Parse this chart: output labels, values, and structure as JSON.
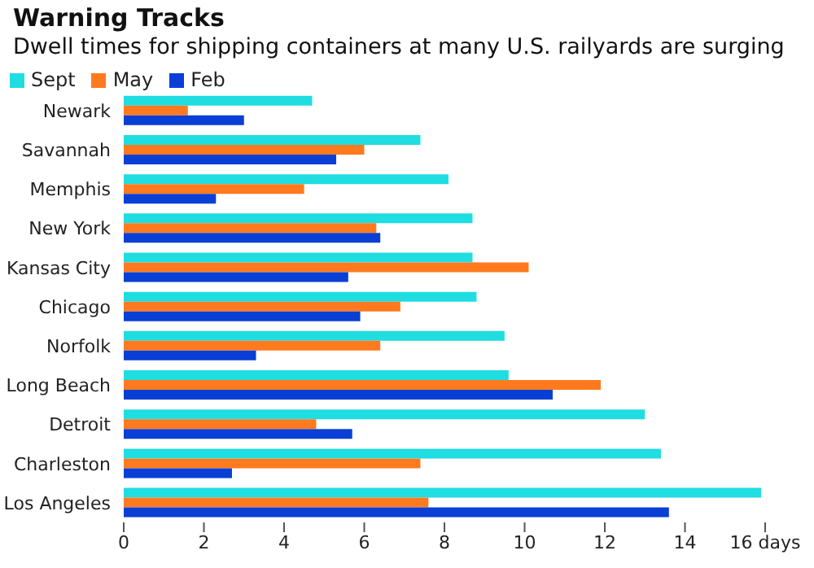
{
  "chart_data": {
    "type": "bar",
    "orientation": "horizontal",
    "title": "Warning Tracks",
    "subtitle": "Dwell times for shipping containers at many U.S. railyards are surging",
    "categories": [
      "Newark",
      "Savannah",
      "Memphis",
      "New York",
      "Kansas City",
      "Chicago",
      "Norfolk",
      "Long Beach",
      "Detroit",
      "Charleston",
      "Los Angeles"
    ],
    "series": [
      {
        "name": "Sept",
        "color": "#1fdde0",
        "values": [
          4.7,
          7.4,
          8.1,
          8.7,
          8.7,
          8.8,
          9.5,
          9.6,
          13.0,
          13.4,
          15.9
        ]
      },
      {
        "name": "May",
        "color": "#ff7a1f",
        "values": [
          1.6,
          6.0,
          4.5,
          6.3,
          10.1,
          6.9,
          6.4,
          11.9,
          4.8,
          7.4,
          7.6
        ]
      },
      {
        "name": "Feb",
        "color": "#0a3fd6",
        "values": [
          3.0,
          5.3,
          2.3,
          6.4,
          5.6,
          5.9,
          3.3,
          10.7,
          5.7,
          2.7,
          13.6
        ]
      }
    ],
    "xlim": [
      0,
      16
    ],
    "xticks": [
      0,
      2,
      4,
      6,
      8,
      10,
      12,
      14,
      {
        "value": 16,
        "label": "16 days"
      }
    ],
    "legend": "top left"
  }
}
